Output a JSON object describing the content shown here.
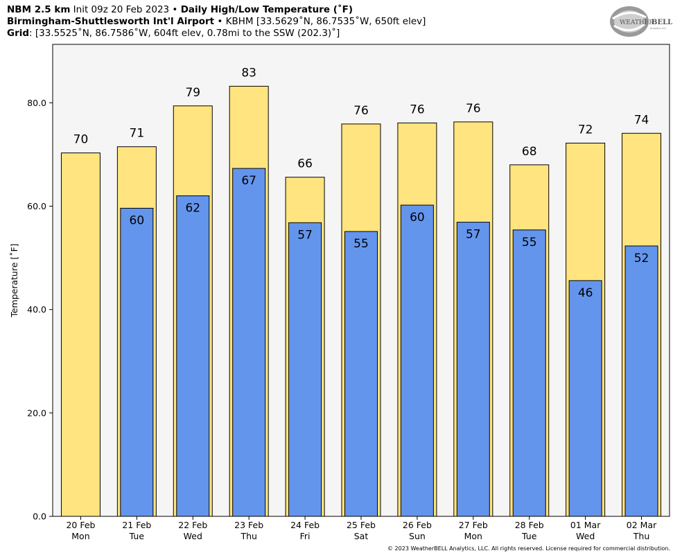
{
  "header": {
    "line1": {
      "model": "NBM 2.5 km",
      "init": " Init 09z 20 Feb 2023 • ",
      "product": "Daily High/Low Temperature (˚F)"
    },
    "line2": {
      "station": "Birmingham-Shuttlesworth Int'l Airport",
      "details": " • KBHM [33.5629˚N, 86.7535˚W, 650ft elev]"
    },
    "line3": {
      "label": "Grid",
      "details": ": [33.5525˚N, 86.7586˚W, 604ft elev, 0.78mi to the SSW (202.3)˚]"
    }
  },
  "logo": {
    "text_main": "WEATHER",
    "text_bold": "BELL",
    "subtext": "Analytics LLC"
  },
  "footer": "© 2023 WeatherBELL Analytics, LLC. All rights reserved. License required for commercial distribution.",
  "chart_data": {
    "type": "bar",
    "ylabel": "Temperature [˚F]",
    "ylim": [
      0,
      91.3
    ],
    "yticks": [
      "0.0",
      "20.0",
      "40.0",
      "60.0",
      "80.0"
    ],
    "ytick_values": [
      0,
      20,
      40,
      60,
      80
    ],
    "categories": [
      {
        "date": "20 Feb",
        "day": "Mon"
      },
      {
        "date": "21 Feb",
        "day": "Tue"
      },
      {
        "date": "22 Feb",
        "day": "Wed"
      },
      {
        "date": "23 Feb",
        "day": "Thu"
      },
      {
        "date": "24 Feb",
        "day": "Fri"
      },
      {
        "date": "25 Feb",
        "day": "Sat"
      },
      {
        "date": "26 Feb",
        "day": "Sun"
      },
      {
        "date": "27 Feb",
        "day": "Mon"
      },
      {
        "date": "28 Feb",
        "day": "Tue"
      },
      {
        "date": "01 Mar",
        "day": "Wed"
      },
      {
        "date": "02 Mar",
        "day": "Thu"
      }
    ],
    "series": [
      {
        "key": "high",
        "color": "#ffe47f",
        "values": [
          70.3,
          71.5,
          79.4,
          83.2,
          65.6,
          75.9,
          76.1,
          76.3,
          68.0,
          72.2,
          74.1
        ],
        "labels": [
          "70",
          "71",
          "79",
          "83",
          "66",
          "76",
          "76",
          "76",
          "68",
          "72",
          "74"
        ]
      },
      {
        "key": "low",
        "color": "#6495ed",
        "values": [
          null,
          59.6,
          62.0,
          67.3,
          56.8,
          55.1,
          60.2,
          56.9,
          55.4,
          45.6,
          52.3
        ],
        "labels": [
          "",
          "60",
          "62",
          "67",
          "57",
          "55",
          "60",
          "57",
          "55",
          "46",
          "52"
        ]
      }
    ],
    "plot_background": "#f5f5f5",
    "grid": false
  }
}
